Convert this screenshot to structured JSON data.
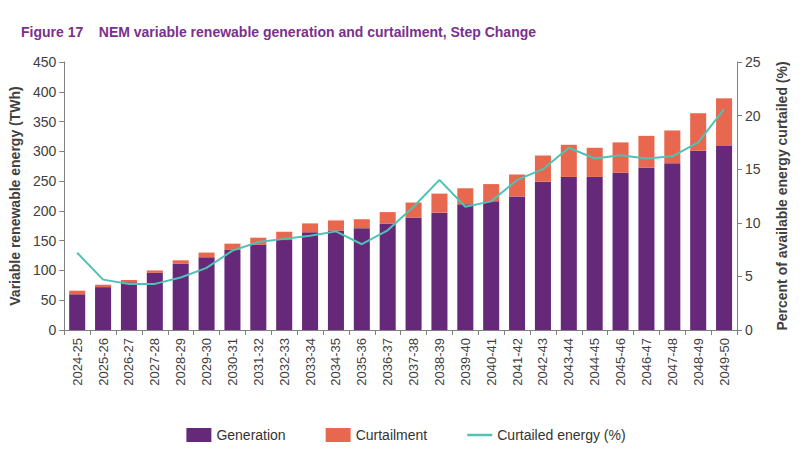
{
  "chart_data": {
    "type": "bar",
    "title": "Figure 17    NEM variable renewable generation and curtailment, Step Change",
    "y_label": "Variable renewable energy (TWh)",
    "y2_label": "Percent of available energy curtailed (%)",
    "categories": [
      "2024-25",
      "2025-26",
      "2026-27",
      "2027-28",
      "2028-29",
      "2029-30",
      "2030-31",
      "2031-32",
      "2032-33",
      "2033-34",
      "2034-35",
      "2035-36",
      "2036-37",
      "2037-38",
      "2038-39",
      "2039-40",
      "2040-41",
      "2041-42",
      "2042-43",
      "2043-44",
      "2044-45",
      "2045-46",
      "2046-47",
      "2047-48",
      "2048-49",
      "2049-50"
    ],
    "series": [
      {
        "name": "Generation",
        "type": "bar",
        "color": "#66297a",
        "values": [
          60,
          72,
          80,
          96,
          111,
          122,
          135,
          143,
          151,
          164,
          167,
          171,
          179,
          189,
          197,
          211,
          216,
          224,
          249,
          257,
          257,
          264,
          273,
          280,
          301,
          309
        ]
      },
      {
        "name": "Curtailment",
        "type": "bar",
        "color": "#e8684f",
        "values": [
          6,
          4,
          4,
          4,
          6,
          8,
          10,
          12,
          14,
          15,
          17,
          15,
          19,
          25,
          32,
          27,
          29,
          37,
          44,
          54,
          49,
          51,
          53,
          55,
          63,
          80
        ]
      },
      {
        "name": "Curtailed energy (%)",
        "type": "line",
        "axis": "y2",
        "color": "#4ec3b5",
        "values": [
          7.2,
          4.7,
          4.3,
          4.3,
          4.9,
          5.8,
          7.4,
          8.2,
          8.5,
          8.8,
          9.2,
          8.0,
          9.3,
          11.5,
          14.0,
          11.5,
          12.0,
          14.0,
          15.0,
          17.0,
          16.0,
          16.3,
          16.0,
          16.2,
          17.5,
          20.6
        ]
      }
    ],
    "ylim": [
      0,
      450
    ],
    "yticks": [
      0,
      50,
      100,
      150,
      200,
      250,
      300,
      350,
      400,
      450
    ],
    "y2lim": [
      0,
      25
    ],
    "y2ticks": [
      0,
      5,
      10,
      15,
      20,
      25
    ],
    "stacked": true,
    "grid": false,
    "legend": "bottom"
  }
}
